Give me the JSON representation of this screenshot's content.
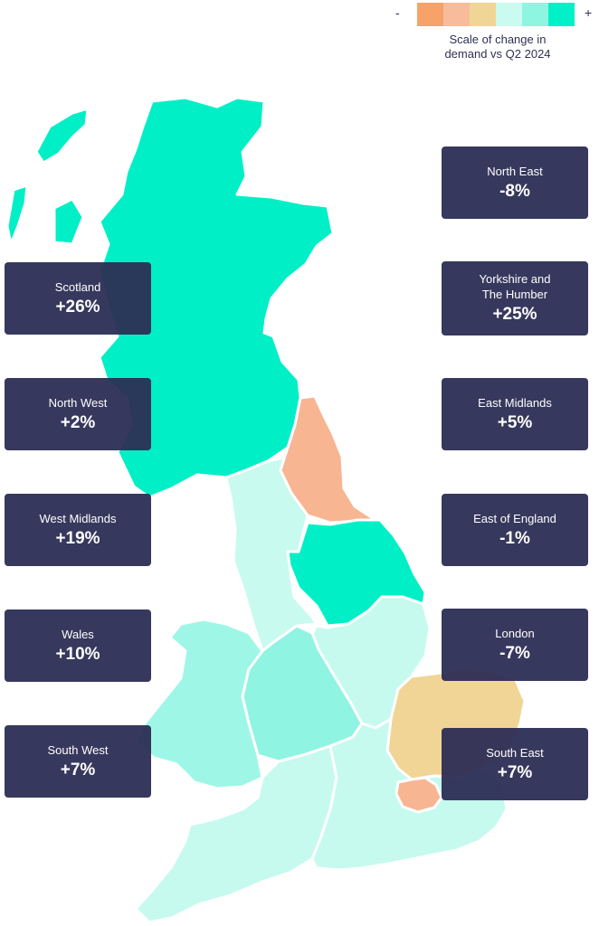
{
  "legend": {
    "minus": "-",
    "plus": "+",
    "caption": "Scale of change in\ndemand vs Q2 2024",
    "colors": [
      "#f7a268",
      "#f8bc9a",
      "#f1d596",
      "#cafaf0",
      "#8ef5e1",
      "#00f1c7"
    ]
  },
  "regions": {
    "north_east": {
      "name": "North East",
      "value": "-8%",
      "color": "#f8b592"
    },
    "yorkshire": {
      "name": "Yorkshire and\nThe Humber",
      "value": "+25%",
      "color": "#00efc6"
    },
    "east_midlands": {
      "name": "East Midlands",
      "value": "+5%",
      "color": "#c6faef"
    },
    "east_of_england": {
      "name": "East of England",
      "value": "-1%",
      "color": "#f1d596"
    },
    "london": {
      "name": "London",
      "value": "-7%",
      "color": "#f8b592"
    },
    "south_east": {
      "name": "South East",
      "value": "+7%",
      "color": "#c6faef"
    },
    "scotland": {
      "name": "Scotland",
      "value": "+26%",
      "color": "#00efc6"
    },
    "north_west": {
      "name": "North West",
      "value": "+2%",
      "color": "#c9faf0"
    },
    "west_midlands": {
      "name": "West Midlands",
      "value": "+19%",
      "color": "#8ff4e1"
    },
    "wales": {
      "name": "Wales",
      "value": "+10%",
      "color": "#9ef7e6"
    },
    "south_west": {
      "name": "South West",
      "value": "+7%",
      "color": "#c6faef"
    }
  }
}
